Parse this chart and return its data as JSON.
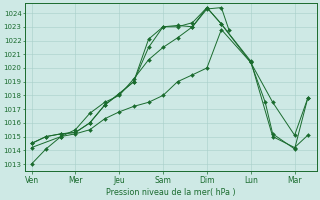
{
  "background_color": "#cee9e5",
  "grid_color": "#a8cfc9",
  "line_color": "#1a6b2e",
  "xlabel": "Pression niveau de la mer( hPa )",
  "xtick_labels": [
    "Ven",
    "Mer",
    "Jeu",
    "Sam",
    "Dim",
    "Lun",
    "Mar"
  ],
  "xtick_positions": [
    0,
    1,
    2,
    3,
    4,
    5,
    6
  ],
  "ylim": [
    1012.5,
    1024.7
  ],
  "yticks": [
    1013,
    1014,
    1015,
    1016,
    1017,
    1018,
    1019,
    1020,
    1021,
    1022,
    1023,
    1024
  ],
  "xlim": [
    -0.15,
    6.5
  ],
  "series": [
    {
      "x": [
        0.0,
        0.33,
        0.67,
        1.0,
        1.33,
        1.67,
        2.0,
        2.33,
        2.67,
        3.0,
        3.33,
        3.67,
        4.0,
        4.33,
        4.5
      ],
      "y": [
        1013.0,
        1014.1,
        1015.0,
        1015.5,
        1016.7,
        1017.5,
        1018.0,
        1019.2,
        1020.6,
        1021.5,
        1022.2,
        1023.0,
        1024.3,
        1024.4,
        1022.8
      ]
    },
    {
      "x": [
        0.0,
        0.33,
        0.67,
        1.0,
        1.33,
        1.67,
        2.0,
        2.33,
        2.67,
        3.0,
        3.33,
        3.67,
        4.0,
        4.33,
        5.0,
        5.5,
        6.0,
        6.3
      ],
      "y": [
        1014.5,
        1015.0,
        1015.2,
        1015.3,
        1016.0,
        1017.3,
        1018.1,
        1019.0,
        1022.1,
        1023.0,
        1023.0,
        1023.3,
        1024.4,
        1023.2,
        1020.5,
        1015.0,
        1014.2,
        1015.1
      ]
    },
    {
      "x": [
        0.0,
        0.33,
        0.67,
        1.0,
        1.33,
        1.67,
        2.33,
        2.67,
        3.0,
        3.33,
        3.67,
        4.0,
        4.33,
        5.0,
        5.5,
        6.0,
        6.3
      ],
      "y": [
        1014.5,
        1015.0,
        1015.2,
        1015.3,
        1016.0,
        1017.3,
        1019.0,
        1021.5,
        1023.0,
        1023.1,
        1023.0,
        1024.4,
        1023.2,
        1020.4,
        1017.5,
        1015.1,
        1017.8
      ]
    },
    {
      "x": [
        0.0,
        0.67,
        1.0,
        1.33,
        1.67,
        2.0,
        2.33,
        2.67,
        3.0,
        3.33,
        3.67,
        4.0,
        4.33,
        5.0,
        5.33,
        5.5,
        6.0,
        6.3
      ],
      "y": [
        1014.2,
        1015.0,
        1015.2,
        1015.5,
        1016.3,
        1016.8,
        1017.2,
        1017.5,
        1018.0,
        1019.0,
        1019.5,
        1020.0,
        1022.8,
        1020.4,
        1017.5,
        1015.2,
        1014.1,
        1017.8
      ]
    }
  ]
}
